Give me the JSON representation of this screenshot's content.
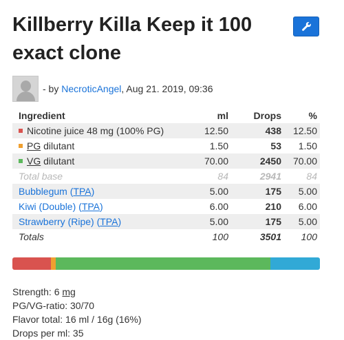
{
  "recipe": {
    "title": "Killberry Killa Keep it 100 exact clone",
    "byline_prefix": "- by",
    "author": "NecroticAngel",
    "date": ", Aug 21. 2019, 09:36"
  },
  "table": {
    "headers": {
      "ingredient": "Ingredient",
      "ml": "ml",
      "drops": "Drops",
      "pct": "%"
    },
    "base_rows": [
      {
        "swatch": "#d9534f",
        "name": "Nicotine juice 48 mg (100% PG)",
        "ml": "12.50",
        "drops": "438",
        "pct": "12.50"
      },
      {
        "swatch": "#f0a030",
        "abbr": "PG",
        "rest": " dilutant",
        "ml": "1.50",
        "drops": "53",
        "pct": "1.50"
      },
      {
        "swatch": "#5cb85c",
        "abbr": "VG",
        "rest": " dilutant",
        "ml": "70.00",
        "drops": "2450",
        "pct": "70.00"
      }
    ],
    "total_base": {
      "name": "Total base",
      "ml": "84",
      "drops": "2941",
      "pct": "84"
    },
    "flavors": [
      {
        "name": "Bubblegum (",
        "vendor": "TPA",
        "close": ")",
        "ml": "5.00",
        "drops": "175",
        "pct": "5.00"
      },
      {
        "name": "Kiwi (Double) (",
        "vendor": "TPA",
        "close": ")",
        "ml": "6.00",
        "drops": "210",
        "pct": "6.00"
      },
      {
        "name": "Strawberry (Ripe) (",
        "vendor": "TPA",
        "close": ")",
        "ml": "5.00",
        "drops": "175",
        "pct": "5.00"
      }
    ],
    "totals": {
      "name": "Totals",
      "ml": "100",
      "drops": "3501",
      "pct": "100"
    }
  },
  "composition_bar": [
    {
      "name": "nicotine",
      "percent": 12.5,
      "color": "#d9534f"
    },
    {
      "name": "pg",
      "percent": 1.5,
      "color": "#f0a030"
    },
    {
      "name": "vg",
      "percent": 70,
      "color": "#5cb85c"
    },
    {
      "name": "flavors",
      "percent": 16,
      "color": "#31a9d6"
    }
  ],
  "stats": {
    "strength_label": "Strength: 6 ",
    "strength_unit": "mg",
    "pgvg": "PG/VG-ratio: 30/70",
    "flavor_total": "Flavor total: 16 ml / 16g (16%)",
    "drops_per_ml": "Drops per ml: 35"
  },
  "icons": {
    "edit_button": "wrench-icon"
  },
  "colors": {
    "link": "#1a73d9",
    "button": "#1a73d9"
  }
}
